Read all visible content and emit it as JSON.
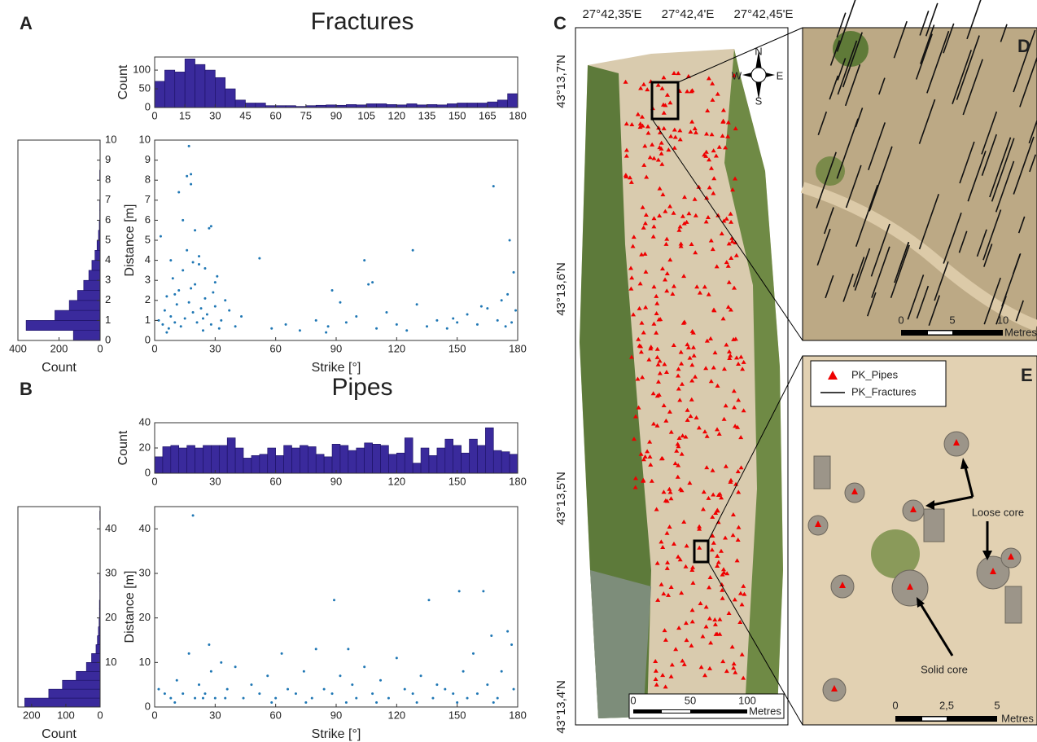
{
  "chart_data": [
    {
      "type": "histogram",
      "panel_label": "A",
      "title": "Fractures",
      "ylabel": "Count",
      "color": "#3a2a9c",
      "bins": [
        0,
        5,
        10,
        15,
        20,
        25,
        30,
        35,
        40,
        45,
        50,
        55,
        60,
        65,
        70,
        75,
        80,
        85,
        90,
        95,
        100,
        105,
        110,
        115,
        120,
        125,
        130,
        135,
        140,
        145,
        150,
        155,
        160,
        165,
        170,
        175,
        180
      ],
      "counts": [
        70,
        100,
        95,
        130,
        115,
        100,
        80,
        50,
        20,
        12,
        12,
        5,
        5,
        5,
        3,
        5,
        6,
        7,
        6,
        8,
        7,
        10,
        10,
        8,
        7,
        10,
        7,
        8,
        7,
        10,
        12,
        12,
        12,
        15,
        20,
        37
      ],
      "xlim": [
        0,
        180
      ],
      "ylim": [
        0,
        135
      ],
      "xticks": [
        0,
        15,
        30,
        45,
        60,
        75,
        90,
        105,
        120,
        135,
        150,
        165,
        180
      ],
      "yticks": [
        0,
        50,
        100
      ]
    },
    {
      "type": "histogram",
      "orientation": "horizontal",
      "xlabel": "Count",
      "color": "#3a2a9c",
      "bins": [
        0,
        0.5,
        1,
        1.5,
        2,
        2.5,
        3,
        3.5,
        4,
        4.5,
        5,
        5.5,
        6,
        6.5,
        7,
        7.5,
        8,
        8.5,
        9,
        9.5,
        10
      ],
      "counts": [
        130,
        360,
        220,
        150,
        110,
        80,
        55,
        40,
        25,
        15,
        8,
        4,
        2,
        2,
        1,
        1,
        2,
        0,
        0,
        1
      ],
      "xlim": [
        400,
        0
      ],
      "ylim": [
        0,
        10
      ],
      "xticks": [
        400,
        200,
        0
      ],
      "yticks": [
        0,
        1,
        2,
        3,
        4,
        5,
        6,
        7,
        8,
        9,
        10
      ]
    },
    {
      "type": "scatter",
      "xlabel": "Strike [°]",
      "ylabel": "Distance [m]",
      "color": "#1f77b4",
      "x": [
        2,
        4,
        5,
        6,
        7,
        8,
        9,
        10,
        11,
        12,
        13,
        14,
        15,
        16,
        17,
        18,
        19,
        20,
        21,
        22,
        23,
        24,
        25,
        26,
        27,
        28,
        29,
        30,
        31,
        32,
        33,
        35,
        37,
        40,
        43,
        3,
        8,
        12,
        16,
        18,
        20,
        22,
        25,
        28,
        30,
        14,
        17,
        18,
        19,
        24,
        10,
        6,
        52,
        58,
        65,
        72,
        80,
        86,
        88,
        95,
        100,
        104,
        106,
        110,
        115,
        120,
        125,
        128,
        130,
        135,
        140,
        145,
        150,
        155,
        160,
        165,
        168,
        170,
        172,
        174,
        176,
        178,
        179,
        177,
        175,
        162,
        148,
        108,
        92,
        85
      ],
      "y": [
        1.0,
        0.8,
        1.5,
        2.2,
        0.6,
        1.2,
        3.1,
        0.9,
        1.8,
        2.5,
        0.7,
        3.5,
        1.1,
        4.5,
        9.7,
        8.3,
        1.4,
        2.8,
        0.9,
        3.8,
        1.6,
        0.5,
        2.1,
        1.3,
        5.6,
        0.8,
        2.4,
        1.7,
        3.2,
        0.6,
        1.0,
        2.0,
        1.5,
        0.7,
        1.2,
        5.2,
        4.0,
        7.4,
        8.2,
        7.8,
        5.5,
        4.2,
        3.6,
        5.7,
        2.9,
        6.0,
        1.9,
        2.6,
        3.9,
        1.1,
        2.3,
        0.4,
        4.1,
        0.6,
        0.8,
        0.5,
        1.0,
        0.7,
        2.5,
        0.9,
        1.2,
        4.0,
        2.8,
        0.6,
        1.4,
        0.8,
        0.5,
        4.5,
        1.8,
        0.7,
        1.0,
        0.6,
        0.9,
        1.3,
        0.8,
        1.6,
        7.7,
        1.0,
        2.0,
        0.7,
        5.0,
        3.4,
        1.5,
        0.9,
        2.3,
        1.7,
        1.1,
        2.9,
        1.9,
        0.4
      ],
      "xlim": [
        0,
        180
      ],
      "ylim": [
        0,
        10
      ],
      "xticks": [
        0,
        30,
        60,
        90,
        120,
        150,
        180
      ],
      "yticks": [
        0,
        1,
        2,
        3,
        4,
        5,
        6,
        7,
        8,
        9,
        10
      ]
    },
    {
      "type": "histogram",
      "panel_label": "B",
      "title": "Pipes",
      "ylabel": "Count",
      "color": "#3a2a9c",
      "bins": [
        0,
        4,
        8,
        12,
        16,
        20,
        24,
        28,
        32,
        36,
        40,
        44,
        48,
        52,
        56,
        60,
        64,
        68,
        72,
        76,
        80,
        84,
        88,
        92,
        96,
        100,
        104,
        108,
        112,
        116,
        120,
        124,
        128,
        132,
        136,
        140,
        144,
        148,
        152,
        156,
        160,
        164,
        168,
        172,
        176,
        180
      ],
      "counts": [
        13,
        21,
        22,
        20,
        22,
        20,
        22,
        22,
        22,
        28,
        20,
        12,
        14,
        15,
        20,
        14,
        22,
        20,
        22,
        21,
        15,
        13,
        23,
        22,
        18,
        20,
        24,
        23,
        22,
        15,
        16,
        28,
        8,
        20,
        14,
        20,
        27,
        22,
        16,
        27,
        22,
        36,
        18,
        17,
        15
      ],
      "xlim": [
        0,
        180
      ],
      "ylim": [
        0,
        40
      ],
      "xticks": [
        0,
        30,
        60,
        90,
        120,
        150,
        180
      ],
      "yticks": [
        0,
        20,
        40
      ]
    },
    {
      "type": "histogram",
      "orientation": "horizontal",
      "xlabel": "Count",
      "color": "#3a2a9c",
      "bins": [
        0,
        2,
        4,
        6,
        8,
        10,
        12,
        14,
        16,
        18,
        20,
        22,
        24,
        26,
        28,
        30,
        32,
        34,
        36,
        38,
        40,
        42,
        44
      ],
      "counts": [
        220,
        150,
        110,
        70,
        40,
        25,
        12,
        8,
        5,
        3,
        2,
        2,
        1,
        1,
        1,
        0,
        0,
        0,
        0,
        0,
        0,
        1
      ],
      "xlim": [
        240,
        0
      ],
      "ylim": [
        0,
        45
      ],
      "xticks": [
        200,
        100,
        0
      ],
      "yticks": [
        10,
        20,
        30,
        40
      ]
    },
    {
      "type": "scatter",
      "xlabel": "Strike [°]",
      "ylabel": "Distance [m]",
      "color": "#1f77b4",
      "x": [
        2,
        5,
        8,
        11,
        14,
        17,
        19,
        20,
        22,
        25,
        27,
        28,
        30,
        33,
        36,
        40,
        44,
        48,
        52,
        56,
        60,
        63,
        66,
        70,
        74,
        78,
        80,
        84,
        88,
        89,
        92,
        96,
        98,
        100,
        104,
        108,
        112,
        116,
        120,
        124,
        128,
        132,
        136,
        138,
        140,
        144,
        148,
        151,
        153,
        155,
        158,
        160,
        163,
        165,
        167,
        170,
        172,
        175,
        177,
        178,
        10,
        35,
        58,
        75,
        95,
        110,
        130,
        150,
        168,
        24
      ],
      "y": [
        4,
        3,
        2,
        6,
        3,
        12,
        43,
        2,
        5,
        3,
        14,
        8,
        2,
        10,
        4,
        9,
        2,
        5,
        3,
        7,
        2,
        12,
        4,
        3,
        8,
        2,
        13,
        4,
        3,
        24,
        7,
        13,
        5,
        2,
        9,
        3,
        6,
        2,
        11,
        4,
        3,
        7,
        24,
        2,
        5,
        4,
        3,
        26,
        8,
        2,
        12,
        3,
        26,
        5,
        16,
        2,
        8,
        17,
        14,
        4,
        1,
        2,
        1,
        1,
        1,
        1,
        1,
        1,
        1,
        2
      ],
      "xlim": [
        0,
        180
      ],
      "ylim": [
        0,
        45
      ],
      "xticks": [
        0,
        30,
        60,
        90,
        120,
        150,
        180
      ],
      "yticks": [
        0,
        10,
        20,
        30,
        40
      ]
    }
  ],
  "map": {
    "panel_c": "C",
    "panel_d": "D",
    "panel_e": "E",
    "longitudes": [
      "27°42,35'E",
      "27°42,4'E",
      "27°42,45'E"
    ],
    "latitudes": [
      "43°13,7'N",
      "43°13,6'N",
      "43°13,5'N",
      "43°13,4'N"
    ],
    "compass": {
      "n": "N",
      "s": "S",
      "e": "E",
      "w": "W"
    },
    "scale_c": [
      "0",
      "50",
      "100",
      "Metres"
    ],
    "scale_d": [
      "0",
      "5",
      "10",
      "Metres"
    ],
    "scale_e": [
      "0",
      "2,5",
      "5",
      "Metres"
    ],
    "legend": [
      "PK_Pipes",
      "PK_Fractures"
    ],
    "annotations": [
      "Loose core",
      "Solid core"
    ]
  }
}
